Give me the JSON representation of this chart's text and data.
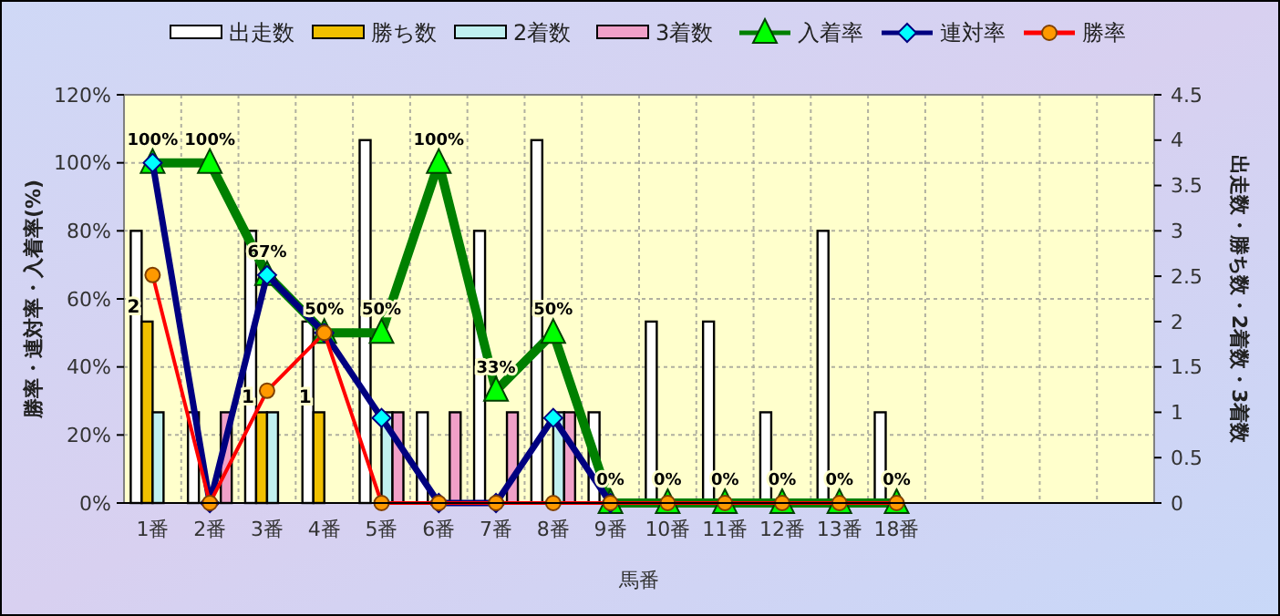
{
  "chart_data": {
    "type": "bar",
    "xlabel": "馬番",
    "ylabel": "勝率・連対率・入着率(%)",
    "y2label": "出走数・勝ち数・2着数・3着数",
    "categories": [
      "1番",
      "2番",
      "3番",
      "4番",
      "5番",
      "6番",
      "7番",
      "8番",
      "9番",
      "10番",
      "11番",
      "12番",
      "13番",
      "18番",
      null,
      null,
      null,
      null
    ],
    "series": [
      {
        "name": "出走数",
        "axis": "y2",
        "color": "#ffffff",
        "values": [
          3,
          1,
          3,
          2,
          4,
          1,
          3,
          4,
          1,
          2,
          2,
          1,
          3,
          1,
          null,
          null,
          null,
          null
        ]
      },
      {
        "name": "勝ち数",
        "axis": "y2",
        "color": "#f0c000",
        "values": [
          2,
          0,
          1,
          1,
          0,
          0,
          0,
          0,
          0,
          0,
          0,
          0,
          0,
          0,
          null,
          null,
          null,
          null
        ],
        "value_labels": [
          "2",
          null,
          "1",
          "1",
          null,
          null,
          null,
          null,
          null,
          null,
          null,
          null,
          null,
          null,
          null,
          null,
          null,
          null
        ]
      },
      {
        "name": "2着数",
        "axis": "y2",
        "color": "#c0f0f0",
        "values": [
          1,
          0,
          1,
          0,
          1,
          0,
          0,
          1,
          0,
          0,
          0,
          0,
          0,
          0,
          null,
          null,
          null,
          null
        ]
      },
      {
        "name": "3着数",
        "axis": "y2",
        "color": "#f0a0c8",
        "values": [
          0,
          1,
          0,
          0,
          1,
          1,
          1,
          1,
          0,
          0,
          0,
          0,
          0,
          0,
          null,
          null,
          null,
          null
        ]
      },
      {
        "name": "入着率",
        "type": "line",
        "color": "#008000",
        "marker": "triangle",
        "values": [
          100,
          100,
          67,
          50,
          50,
          100,
          33,
          50,
          0,
          0,
          0,
          0,
          0,
          0,
          null,
          null,
          null,
          null
        ],
        "value_labels": [
          "100%",
          "100%",
          "67%",
          "50%",
          "50%",
          "100%",
          "33%",
          "50%",
          "0%",
          "0%",
          "0%",
          "0%",
          "0%",
          "0%",
          null,
          null,
          null,
          null
        ]
      },
      {
        "name": "連対率",
        "type": "line",
        "color": "#000080",
        "marker": "diamond",
        "values": [
          100,
          0,
          67,
          50,
          25,
          0,
          0,
          25,
          0,
          null,
          null,
          null,
          null,
          null,
          null,
          null,
          null,
          null
        ]
      },
      {
        "name": "勝率",
        "type": "line",
        "color": "#ff0000",
        "marker": "circle",
        "values": [
          67,
          0,
          33,
          50,
          0,
          0,
          0,
          0,
          0,
          0,
          0,
          0,
          0,
          0,
          null,
          null,
          null,
          null
        ]
      }
    ],
    "ylim": [
      0,
      120
    ],
    "yticks": [
      {
        "value": 0,
        "label": "0%"
      },
      {
        "value": 20,
        "label": "20%"
      },
      {
        "value": 40,
        "label": "40%"
      },
      {
        "value": 60,
        "label": "60%"
      },
      {
        "value": 80,
        "label": "80%"
      },
      {
        "value": 100,
        "label": "100%"
      },
      {
        "value": 120,
        "label": "120%"
      }
    ],
    "y2lim": [
      0,
      4.5
    ],
    "y2ticks": [
      0,
      0.5,
      1,
      1.5,
      2,
      2.5,
      3,
      3.5,
      4,
      4.5
    ],
    "grid": true,
    "legend": "top",
    "line_style": "solid"
  }
}
